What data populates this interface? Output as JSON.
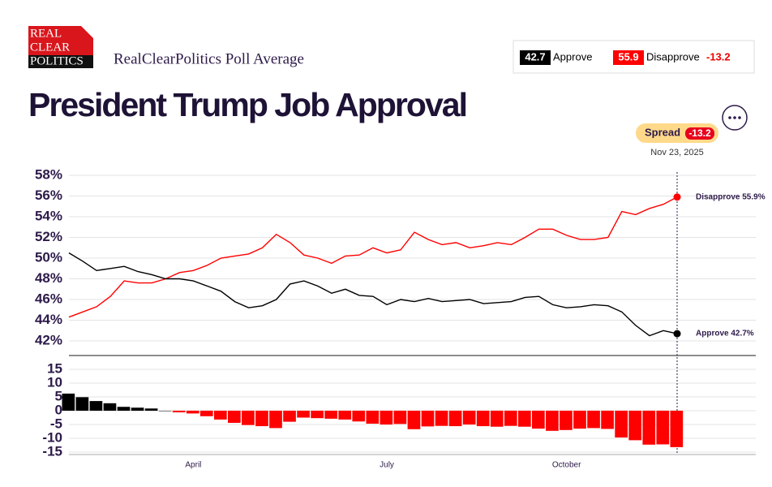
{
  "header": {
    "logo": [
      "REAL",
      "CLEAR",
      "POLITICS"
    ],
    "source": "RealClearPolitics Poll Average",
    "summary": {
      "approve_value": "42.7",
      "approve_label": "Approve",
      "disapprove_value": "55.9",
      "disapprove_label": "Disapprove",
      "spread": "-13.2"
    }
  },
  "title": "President Trump Job Approval",
  "spread_badge": {
    "label": "Spread",
    "value": "-13.2"
  },
  "date": "Nov 23, 2025",
  "chart_data": [
    {
      "type": "line",
      "series": [
        {
          "name": "Disapprove",
          "color": "#ff0000",
          "end_label": "Disapprove 55.9%",
          "values": [
            44.3,
            44.8,
            45.3,
            46.3,
            47.8,
            47.6,
            47.6,
            48.0,
            48.6,
            48.8,
            49.3,
            50.0,
            50.2,
            50.4,
            51.0,
            52.3,
            51.5,
            50.3,
            50.0,
            49.5,
            50.2,
            50.3,
            51.0,
            50.5,
            50.8,
            52.5,
            51.8,
            51.3,
            51.5,
            51.0,
            51.2,
            51.5,
            51.3,
            52.0,
            52.8,
            52.8,
            52.2,
            51.8,
            51.8,
            52.0,
            54.5,
            54.2,
            54.8,
            55.2,
            55.9
          ]
        },
        {
          "name": "Approve",
          "color": "#000000",
          "end_label": "Approve 42.7%",
          "values": [
            50.5,
            49.7,
            48.8,
            49.0,
            49.2,
            48.7,
            48.4,
            48.0,
            48.0,
            47.8,
            47.3,
            46.8,
            45.8,
            45.2,
            45.4,
            46.0,
            47.5,
            47.8,
            47.3,
            46.6,
            47.0,
            46.4,
            46.3,
            45.5,
            46.0,
            45.8,
            46.1,
            45.8,
            45.9,
            46.0,
            45.6,
            45.7,
            45.8,
            46.2,
            46.3,
            45.5,
            45.2,
            45.3,
            45.5,
            45.4,
            44.8,
            43.5,
            42.5,
            43.0,
            42.7
          ]
        }
      ],
      "ylim": [
        42,
        58
      ],
      "yticks": [
        {
          "value": 58,
          "label": "58%"
        },
        {
          "value": 56,
          "label": "56%"
        },
        {
          "value": 54,
          "label": "54%"
        },
        {
          "value": 52,
          "label": "52%"
        },
        {
          "value": 50,
          "label": "50%"
        },
        {
          "value": 48,
          "label": "48%"
        },
        {
          "value": 46,
          "label": "46%"
        },
        {
          "value": 44,
          "label": "44%"
        },
        {
          "value": 42,
          "label": "42%"
        }
      ],
      "grid": true
    },
    {
      "type": "bar",
      "categories": [
        null,
        null,
        null,
        null,
        null,
        null,
        null,
        null,
        null,
        "April",
        null,
        null,
        null,
        null,
        null,
        null,
        null,
        null,
        null,
        null,
        null,
        null,
        null,
        "July",
        null,
        null,
        null,
        null,
        null,
        null,
        null,
        null,
        null,
        null,
        null,
        null,
        "October",
        null,
        null,
        null,
        null,
        null,
        null,
        null,
        null
      ],
      "values": [
        6.2,
        4.9,
        3.5,
        2.7,
        1.4,
        1.1,
        0.8,
        0.0,
        -0.6,
        -1.0,
        -2.0,
        -3.2,
        -4.4,
        -5.2,
        -5.6,
        -6.3,
        -4.0,
        -2.5,
        -2.7,
        -2.9,
        -3.2,
        -3.9,
        -4.7,
        -5.0,
        -4.8,
        -6.7,
        -5.7,
        -5.5,
        -5.6,
        -5.0,
        -5.6,
        -5.8,
        -5.5,
        -5.8,
        -6.5,
        -7.3,
        -7.0,
        -6.5,
        -6.3,
        -6.6,
        -9.7,
        -10.7,
        -12.3,
        -12.2,
        -13.2
      ],
      "color_positive": "#000000",
      "color_negative": "#ff0000",
      "ylim": [
        -15,
        15
      ],
      "yticks": [
        15,
        10,
        5,
        0,
        -5,
        -10,
        -15
      ],
      "grid": true
    }
  ]
}
